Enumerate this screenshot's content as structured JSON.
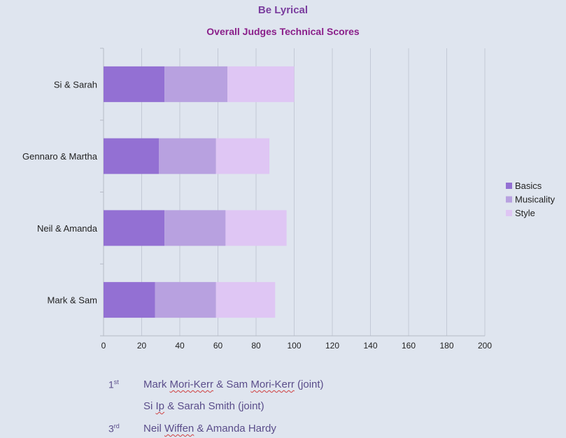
{
  "chart_data": {
    "type": "bar",
    "orientation": "horizontal",
    "stacked": true,
    "title": "Be Lyrical",
    "subtitle": "Overall Judges Technical Scores",
    "categories": [
      "Si & Sarah",
      "Gennaro & Martha",
      "Neil & Amanda",
      "Mark & Sam"
    ],
    "series": [
      {
        "name": "Basics",
        "values": [
          32,
          29,
          32,
          27
        ],
        "color": "#9370d3"
      },
      {
        "name": "Musicality",
        "values": [
          33,
          30,
          32,
          32
        ],
        "color": "#b8a1e0"
      },
      {
        "name": "Style",
        "values": [
          35,
          28,
          32,
          31
        ],
        "color": "#dfc6f4"
      }
    ],
    "xlim": [
      0,
      200
    ],
    "xticks": [
      "0",
      "20",
      "40",
      "60",
      "80",
      "100",
      "120",
      "140",
      "160",
      "180",
      "200"
    ],
    "grid": true,
    "legend": "right"
  },
  "results": [
    {
      "place_num": "1",
      "place_suffix": "st",
      "pre": "Mark ",
      "w1": "Mori-Kerr",
      "mid": " & Sam ",
      "w2": "Mori-Kerr",
      "post": " (joint)"
    },
    {
      "place_num": "",
      "place_suffix": "",
      "pre": "Si ",
      "w1": "Ip",
      "mid": " & Sarah Smith (joint)",
      "w2": "",
      "post": ""
    },
    {
      "place_num": "3",
      "place_suffix": "rd",
      "pre": "Neil ",
      "w1": "Wiffen",
      "mid": " & Amanda Hardy",
      "w2": "",
      "post": ""
    }
  ]
}
